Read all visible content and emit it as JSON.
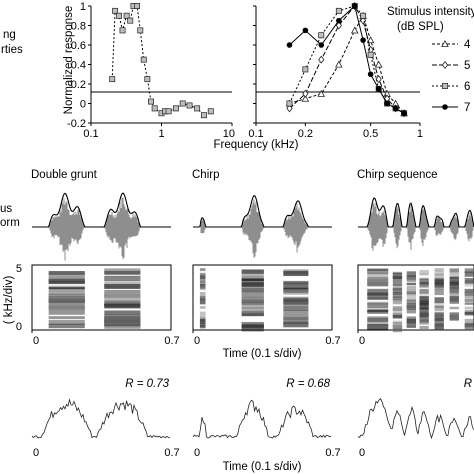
{
  "labels": {
    "tuning_cut": "ng",
    "tuning_cut2": "rties",
    "ylabel": "Normalized response",
    "xlabel": "Frequency (kHz)",
    "legend_title1": "Stimulus intensity",
    "legend_title2": "(dB SPL)",
    "stim_cut1": "us",
    "stim_cut2": "orm",
    "spec_ylabel_cut": "( kHz/div)",
    "time_label_mid": "Time (0.1 s/div)",
    "time_label_bottom": "Time (0.1 s/div)"
  },
  "legend_entries": [
    {
      "label": "4",
      "marker": "triangle",
      "dash": "3,2"
    },
    {
      "label": "5",
      "marker": "diamond",
      "dash": "5,2"
    },
    {
      "label": "6",
      "marker": "square",
      "dash": "2,2"
    },
    {
      "label": "7",
      "marker": "circle",
      "dash": ""
    }
  ],
  "columns": [
    {
      "title": "Double grunt",
      "x_start": "0",
      "x_end": "0.7",
      "r_text": "R = 0.73"
    },
    {
      "title": "Chirp",
      "x_start": "0",
      "x_end": "0.7",
      "r_text": "R = 0.68"
    },
    {
      "title": "Chirp sequence",
      "x_start": "0",
      "x_end": "",
      "r_text": "R"
    }
  ],
  "spec_ticks": {
    "top": "5",
    "bottom": "0"
  },
  "chart_data": [
    {
      "type": "line",
      "panel": "tuning-left",
      "xscale": "log",
      "xlim": [
        0.1,
        10
      ],
      "ylim": [
        -0.2,
        1
      ],
      "xticks": [
        "0.1",
        "1",
        "10"
      ],
      "yticks": [
        "-0.2",
        "0",
        "0.2",
        "0.4",
        "0.6",
        "0.8",
        "1"
      ],
      "series": [
        {
          "marker": "square",
          "dash": "2,2",
          "x": [
            0.2,
            0.22,
            0.25,
            0.28,
            0.32,
            0.36,
            0.4,
            0.45,
            0.5,
            0.56,
            0.63,
            0.71,
            0.8,
            1.0,
            1.12,
            1.26,
            1.6,
            2.0,
            2.5,
            3.2,
            4.0,
            5.0
          ],
          "y": [
            0.25,
            0.95,
            0.9,
            0.75,
            0.9,
            0.85,
            1.0,
            1.0,
            0.75,
            0.45,
            0.25,
            0.02,
            -0.05,
            -0.1,
            -0.08,
            -0.08,
            -0.05,
            0.0,
            -0.02,
            -0.05,
            -0.12,
            -0.08
          ]
        }
      ]
    },
    {
      "type": "line",
      "panel": "tuning-right",
      "xscale": "log",
      "xlim": [
        0.1,
        1
      ],
      "ylim": [
        -0.2,
        1
      ],
      "xticks": [
        "0.1",
        "0.2",
        "0.5",
        "1"
      ],
      "series": [
        {
          "name": "4",
          "marker": "triangle",
          "dash": "3,2",
          "x": [
            0.16,
            0.2,
            0.25,
            0.32,
            0.4,
            0.45,
            0.5,
            0.56,
            0.63,
            0.71,
            0.8
          ],
          "y": [
            0.0,
            0.05,
            0.1,
            0.4,
            0.75,
            0.9,
            0.65,
            0.4,
            0.1,
            0.0,
            -0.1
          ]
        },
        {
          "name": "5",
          "marker": "diamond",
          "dash": "5,2",
          "x": [
            0.16,
            0.2,
            0.25,
            0.32,
            0.4,
            0.45,
            0.5,
            0.56,
            0.63,
            0.71,
            0.8
          ],
          "y": [
            -0.05,
            0.1,
            0.45,
            0.8,
            1.0,
            0.85,
            0.55,
            0.25,
            0.05,
            -0.05,
            -0.1
          ]
        },
        {
          "name": "6",
          "marker": "square",
          "dash": "2,2",
          "x": [
            0.16,
            0.2,
            0.25,
            0.32,
            0.4,
            0.45,
            0.5,
            0.56,
            0.63,
            0.71,
            0.8
          ],
          "y": [
            0.0,
            0.35,
            0.7,
            0.95,
            1.0,
            0.9,
            0.5,
            0.15,
            0.0,
            -0.05,
            -0.1
          ]
        },
        {
          "name": "7",
          "marker": "circle",
          "dash": "",
          "x": [
            0.16,
            0.2,
            0.25,
            0.32,
            0.4,
            0.45,
            0.5,
            0.56,
            0.63,
            0.71,
            0.8
          ],
          "y": [
            0.6,
            0.75,
            0.6,
            0.85,
            1.0,
            0.65,
            0.3,
            0.15,
            0.0,
            -0.05,
            -0.1
          ]
        }
      ]
    }
  ]
}
